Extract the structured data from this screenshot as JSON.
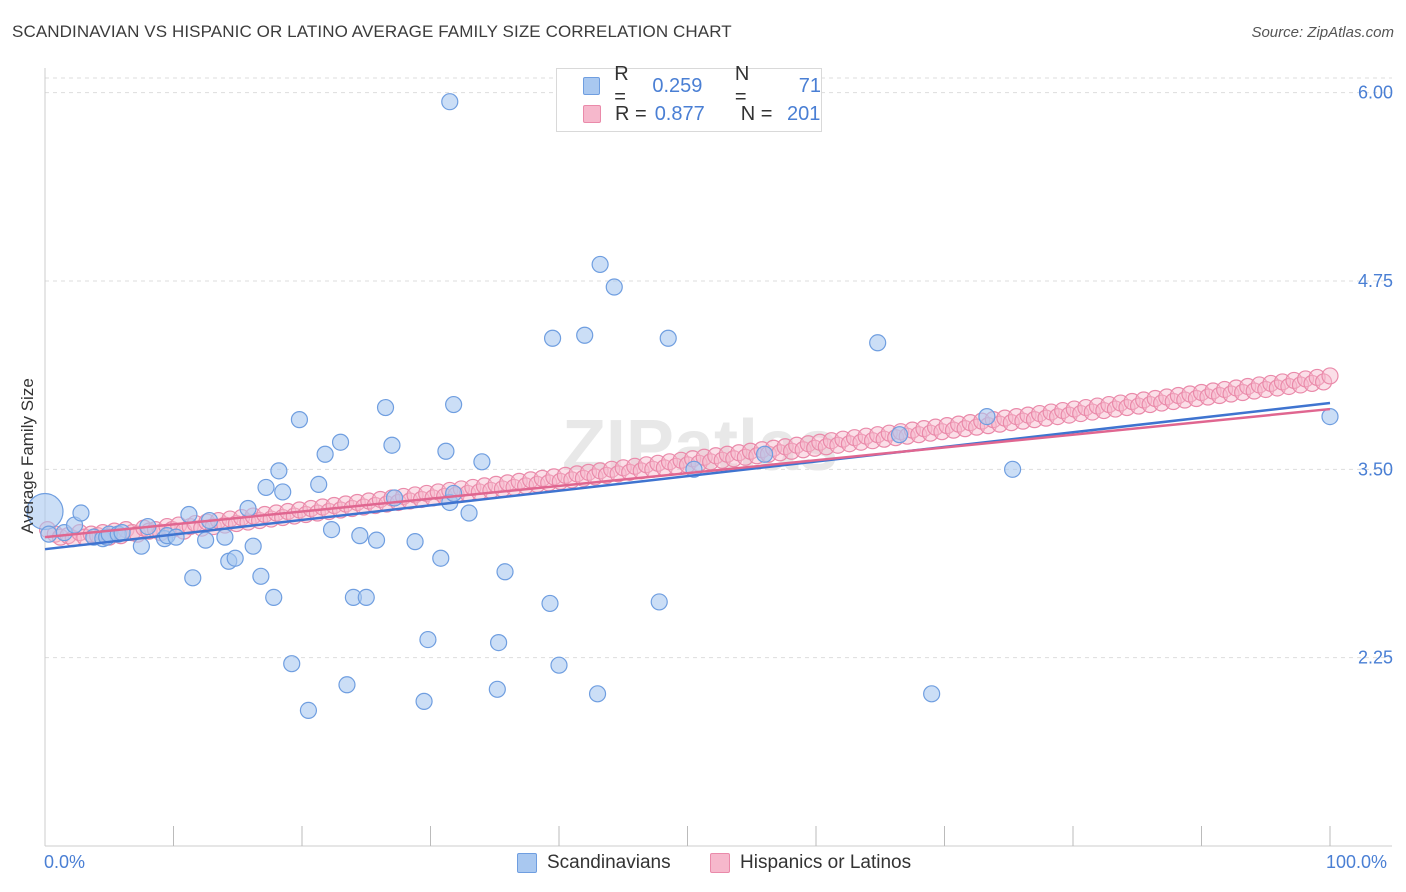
{
  "title": "SCANDINAVIAN VS HISPANIC OR LATINO AVERAGE FAMILY SIZE CORRELATION CHART",
  "source": "Source: ZipAtlas.com",
  "watermark": "ZIPatlas",
  "legend": {
    "rows": [
      {
        "r_label": "R =",
        "r_value": "0.259",
        "n_label": "N =",
        "n_value": "71"
      },
      {
        "r_label": "R =",
        "r_value": "0.877",
        "n_label": "N =",
        "n_value": "201"
      }
    ]
  },
  "colors": {
    "scand_fill": "#a9c8f0",
    "scand_stroke": "#6f9ee0",
    "scand_line": "#3f74d0",
    "hisp_fill": "#f6b8cc",
    "hisp_stroke": "#ea8aaa",
    "hisp_line": "#e06690",
    "value_blue": "#4a7fd4",
    "grid": "#dddddd"
  },
  "chart_data": {
    "type": "scatter",
    "title": "SCANDINAVIAN VS HISPANIC OR LATINO AVERAGE FAMILY SIZE CORRELATION CHART",
    "xlabel": "",
    "ylabel": "Average Family Size",
    "xlim": [
      0,
      100
    ],
    "ylim": [
      1.0,
      6.25
    ],
    "x_tick_labels": [
      "0.0%",
      "100.0%"
    ],
    "y_ticks": [
      2.25,
      3.5,
      4.75,
      6.0
    ],
    "y_tick_labels": [
      "2.25",
      "3.50",
      "4.75",
      "6.00"
    ],
    "grid": true,
    "legend_position": "top-center and bottom",
    "series": [
      {
        "name": "Scandinavians",
        "r": 0.259,
        "n": 71,
        "trend": [
          [
            0,
            2.97
          ],
          [
            100,
            3.94
          ]
        ],
        "points": [
          [
            0.0,
            3.22
          ],
          [
            0.3,
            3.07
          ],
          [
            1.5,
            3.08
          ],
          [
            2.3,
            3.13
          ],
          [
            2.8,
            3.21
          ],
          [
            3.8,
            3.05
          ],
          [
            4.5,
            3.04
          ],
          [
            4.8,
            3.05
          ],
          [
            5.0,
            3.07
          ],
          [
            5.7,
            3.07
          ],
          [
            6.0,
            3.08
          ],
          [
            7.5,
            2.99
          ],
          [
            8.0,
            3.12
          ],
          [
            9.3,
            3.04
          ],
          [
            9.5,
            3.06
          ],
          [
            10.2,
            3.05
          ],
          [
            11.2,
            3.2
          ],
          [
            11.5,
            2.78
          ],
          [
            12.5,
            3.03
          ],
          [
            12.8,
            3.16
          ],
          [
            14.0,
            3.05
          ],
          [
            14.3,
            2.89
          ],
          [
            14.8,
            2.91
          ],
          [
            15.8,
            3.24
          ],
          [
            16.2,
            2.99
          ],
          [
            16.8,
            2.79
          ],
          [
            17.2,
            3.38
          ],
          [
            17.8,
            2.65
          ],
          [
            18.2,
            3.49
          ],
          [
            18.5,
            3.35
          ],
          [
            19.2,
            2.21
          ],
          [
            19.8,
            3.83
          ],
          [
            20.5,
            1.9
          ],
          [
            21.3,
            3.4
          ],
          [
            21.8,
            3.6
          ],
          [
            22.3,
            3.1
          ],
          [
            23.0,
            3.68
          ],
          [
            23.5,
            2.07
          ],
          [
            24.0,
            2.65
          ],
          [
            24.5,
            3.06
          ],
          [
            25.0,
            2.65
          ],
          [
            25.8,
            3.03
          ],
          [
            26.5,
            3.91
          ],
          [
            27.0,
            3.66
          ],
          [
            27.2,
            3.31
          ],
          [
            28.8,
            3.02
          ],
          [
            29.5,
            1.96
          ],
          [
            29.8,
            2.37
          ],
          [
            30.8,
            2.91
          ],
          [
            31.5,
            3.28
          ],
          [
            33.0,
            3.21
          ],
          [
            34.0,
            3.55
          ],
          [
            35.2,
            2.04
          ],
          [
            35.3,
            2.35
          ],
          [
            35.8,
            2.82
          ],
          [
            31.5,
            5.94
          ],
          [
            31.8,
            3.34
          ],
          [
            31.2,
            3.62
          ],
          [
            31.8,
            3.93
          ],
          [
            39.3,
            2.61
          ],
          [
            39.5,
            4.37
          ],
          [
            40.0,
            2.2
          ],
          [
            43.0,
            2.01
          ],
          [
            42.0,
            4.39
          ],
          [
            43.2,
            4.86
          ],
          [
            44.3,
            4.71
          ],
          [
            47.8,
            2.62
          ],
          [
            48.5,
            4.37
          ],
          [
            50.5,
            3.5
          ],
          [
            56.0,
            3.6
          ],
          [
            64.8,
            4.34
          ],
          [
            66.5,
            3.73
          ],
          [
            69.0,
            2.01
          ],
          [
            73.3,
            3.85
          ],
          [
            75.3,
            3.5
          ],
          [
            100.0,
            3.85
          ]
        ]
      },
      {
        "name": "Hispanics or Latinos",
        "r": 0.877,
        "n": 201,
        "trend": [
          [
            0,
            3.05
          ],
          [
            100,
            3.9
          ]
        ],
        "points": [
          [
            0.2,
            3.1
          ],
          [
            0.8,
            3.07
          ],
          [
            1.2,
            3.05
          ],
          [
            1.8,
            3.06
          ],
          [
            2.2,
            3.04
          ],
          [
            2.7,
            3.08
          ],
          [
            3.1,
            3.05
          ],
          [
            3.6,
            3.07
          ],
          [
            4.1,
            3.06
          ],
          [
            4.5,
            3.08
          ],
          [
            5.0,
            3.05
          ],
          [
            5.4,
            3.09
          ],
          [
            5.9,
            3.06
          ],
          [
            6.3,
            3.1
          ],
          [
            6.8,
            3.08
          ],
          [
            7.2,
            3.07
          ],
          [
            7.7,
            3.11
          ],
          [
            8.1,
            3.09
          ],
          [
            8.6,
            3.1
          ],
          [
            9.0,
            3.08
          ],
          [
            9.5,
            3.12
          ],
          [
            9.9,
            3.1
          ],
          [
            10.4,
            3.13
          ],
          [
            10.8,
            3.09
          ],
          [
            11.3,
            3.12
          ],
          [
            11.7,
            3.14
          ],
          [
            12.2,
            3.11
          ],
          [
            12.6,
            3.15
          ],
          [
            13.1,
            3.12
          ],
          [
            13.5,
            3.16
          ],
          [
            14.0,
            3.13
          ],
          [
            14.4,
            3.17
          ],
          [
            14.9,
            3.14
          ],
          [
            15.3,
            3.18
          ],
          [
            15.8,
            3.15
          ],
          [
            16.2,
            3.19
          ],
          [
            16.7,
            3.16
          ],
          [
            17.1,
            3.2
          ],
          [
            17.6,
            3.17
          ],
          [
            18.0,
            3.21
          ],
          [
            18.5,
            3.18
          ],
          [
            18.9,
            3.22
          ],
          [
            19.4,
            3.19
          ],
          [
            19.8,
            3.23
          ],
          [
            20.3,
            3.2
          ],
          [
            20.7,
            3.24
          ],
          [
            21.2,
            3.21
          ],
          [
            21.6,
            3.25
          ],
          [
            22.1,
            3.22
          ],
          [
            22.5,
            3.26
          ],
          [
            23.0,
            3.23
          ],
          [
            23.4,
            3.27
          ],
          [
            23.9,
            3.24
          ],
          [
            24.3,
            3.28
          ],
          [
            24.8,
            3.25
          ],
          [
            25.2,
            3.29
          ],
          [
            25.7,
            3.26
          ],
          [
            26.1,
            3.3
          ],
          [
            26.6,
            3.27
          ],
          [
            27.0,
            3.31
          ],
          [
            27.5,
            3.28
          ],
          [
            27.9,
            3.32
          ],
          [
            28.4,
            3.29
          ],
          [
            28.8,
            3.33
          ],
          [
            29.3,
            3.3
          ],
          [
            29.7,
            3.34
          ],
          [
            30.2,
            3.31
          ],
          [
            30.6,
            3.35
          ],
          [
            31.1,
            3.32
          ],
          [
            31.5,
            3.36
          ],
          [
            32.0,
            3.33
          ],
          [
            32.4,
            3.37
          ],
          [
            32.9,
            3.34
          ],
          [
            33.3,
            3.38
          ],
          [
            33.8,
            3.35
          ],
          [
            34.2,
            3.39
          ],
          [
            34.7,
            3.36
          ],
          [
            35.1,
            3.4
          ],
          [
            35.6,
            3.37
          ],
          [
            36.0,
            3.41
          ],
          [
            36.5,
            3.38
          ],
          [
            36.9,
            3.42
          ],
          [
            37.4,
            3.39
          ],
          [
            37.8,
            3.43
          ],
          [
            38.3,
            3.4
          ],
          [
            38.7,
            3.44
          ],
          [
            39.2,
            3.41
          ],
          [
            39.6,
            3.45
          ],
          [
            40.1,
            3.42
          ],
          [
            40.5,
            3.46
          ],
          [
            41.0,
            3.43
          ],
          [
            41.4,
            3.47
          ],
          [
            41.9,
            3.44
          ],
          [
            42.3,
            3.48
          ],
          [
            42.8,
            3.45
          ],
          [
            43.2,
            3.49
          ],
          [
            43.7,
            3.46
          ],
          [
            44.1,
            3.5
          ],
          [
            44.6,
            3.47
          ],
          [
            45.0,
            3.51
          ],
          [
            45.5,
            3.48
          ],
          [
            45.9,
            3.52
          ],
          [
            46.4,
            3.49
          ],
          [
            46.8,
            3.53
          ],
          [
            47.3,
            3.5
          ],
          [
            47.7,
            3.54
          ],
          [
            48.2,
            3.51
          ],
          [
            48.6,
            3.55
          ],
          [
            49.1,
            3.52
          ],
          [
            49.5,
            3.56
          ],
          [
            50.0,
            3.53
          ],
          [
            50.4,
            3.57
          ],
          [
            50.9,
            3.54
          ],
          [
            51.3,
            3.58
          ],
          [
            51.8,
            3.55
          ],
          [
            52.2,
            3.59
          ],
          [
            52.7,
            3.56
          ],
          [
            53.1,
            3.6
          ],
          [
            53.6,
            3.57
          ],
          [
            54.0,
            3.61
          ],
          [
            54.5,
            3.58
          ],
          [
            54.9,
            3.62
          ],
          [
            55.4,
            3.59
          ],
          [
            55.8,
            3.63
          ],
          [
            56.3,
            3.6
          ],
          [
            56.7,
            3.64
          ],
          [
            57.2,
            3.61
          ],
          [
            57.6,
            3.65
          ],
          [
            58.1,
            3.62
          ],
          [
            58.5,
            3.66
          ],
          [
            59.0,
            3.63
          ],
          [
            59.4,
            3.67
          ],
          [
            59.9,
            3.64
          ],
          [
            60.3,
            3.68
          ],
          [
            60.8,
            3.65
          ],
          [
            61.2,
            3.69
          ],
          [
            61.7,
            3.66
          ],
          [
            62.1,
            3.7
          ],
          [
            62.6,
            3.67
          ],
          [
            63.0,
            3.71
          ],
          [
            63.5,
            3.68
          ],
          [
            63.9,
            3.72
          ],
          [
            64.4,
            3.69
          ],
          [
            64.8,
            3.73
          ],
          [
            65.3,
            3.7
          ],
          [
            65.7,
            3.74
          ],
          [
            66.2,
            3.71
          ],
          [
            66.6,
            3.75
          ],
          [
            67.1,
            3.72
          ],
          [
            67.5,
            3.76
          ],
          [
            68.0,
            3.73
          ],
          [
            68.4,
            3.77
          ],
          [
            68.9,
            3.74
          ],
          [
            69.3,
            3.78
          ],
          [
            69.8,
            3.75
          ],
          [
            70.2,
            3.79
          ],
          [
            70.7,
            3.76
          ],
          [
            71.1,
            3.8
          ],
          [
            71.6,
            3.77
          ],
          [
            72.0,
            3.81
          ],
          [
            72.5,
            3.78
          ],
          [
            72.9,
            3.82
          ],
          [
            73.4,
            3.79
          ],
          [
            73.8,
            3.83
          ],
          [
            74.3,
            3.8
          ],
          [
            74.7,
            3.84
          ],
          [
            75.2,
            3.81
          ],
          [
            75.6,
            3.85
          ],
          [
            76.1,
            3.82
          ],
          [
            76.5,
            3.86
          ],
          [
            77.0,
            3.83
          ],
          [
            77.4,
            3.87
          ],
          [
            77.9,
            3.84
          ],
          [
            78.3,
            3.88
          ],
          [
            78.8,
            3.85
          ],
          [
            79.2,
            3.89
          ],
          [
            79.7,
            3.86
          ],
          [
            80.1,
            3.9
          ],
          [
            80.6,
            3.87
          ],
          [
            81.0,
            3.91
          ],
          [
            81.5,
            3.88
          ],
          [
            81.9,
            3.92
          ],
          [
            82.4,
            3.89
          ],
          [
            82.8,
            3.93
          ],
          [
            83.3,
            3.9
          ],
          [
            83.7,
            3.94
          ],
          [
            84.2,
            3.91
          ],
          [
            84.6,
            3.95
          ],
          [
            85.1,
            3.92
          ],
          [
            85.5,
            3.96
          ],
          [
            86.0,
            3.93
          ],
          [
            86.4,
            3.97
          ],
          [
            86.9,
            3.94
          ],
          [
            87.3,
            3.98
          ],
          [
            87.8,
            3.95
          ],
          [
            88.2,
            3.99
          ],
          [
            88.7,
            3.96
          ],
          [
            89.1,
            4.0
          ],
          [
            89.6,
            3.97
          ],
          [
            90.0,
            4.01
          ],
          [
            90.5,
            3.98
          ],
          [
            90.9,
            4.02
          ],
          [
            91.4,
            3.99
          ],
          [
            91.8,
            4.03
          ],
          [
            92.3,
            4.0
          ],
          [
            92.7,
            4.04
          ],
          [
            93.2,
            4.01
          ],
          [
            93.6,
            4.05
          ],
          [
            94.1,
            4.02
          ],
          [
            94.5,
            4.06
          ],
          [
            95.0,
            4.03
          ],
          [
            95.4,
            4.07
          ],
          [
            95.9,
            4.04
          ],
          [
            96.3,
            4.08
          ],
          [
            96.8,
            4.05
          ],
          [
            97.2,
            4.09
          ],
          [
            97.7,
            4.06
          ],
          [
            98.1,
            4.1
          ],
          [
            98.6,
            4.07
          ],
          [
            99.0,
            4.11
          ],
          [
            99.5,
            4.08
          ],
          [
            100.0,
            4.12
          ]
        ]
      }
    ]
  },
  "x_axis": {
    "min_label": "0.0%",
    "max_label": "100.0%"
  },
  "bottom_legend": [
    {
      "label": "Scandinavians"
    },
    {
      "label": "Hispanics or Latinos"
    }
  ]
}
